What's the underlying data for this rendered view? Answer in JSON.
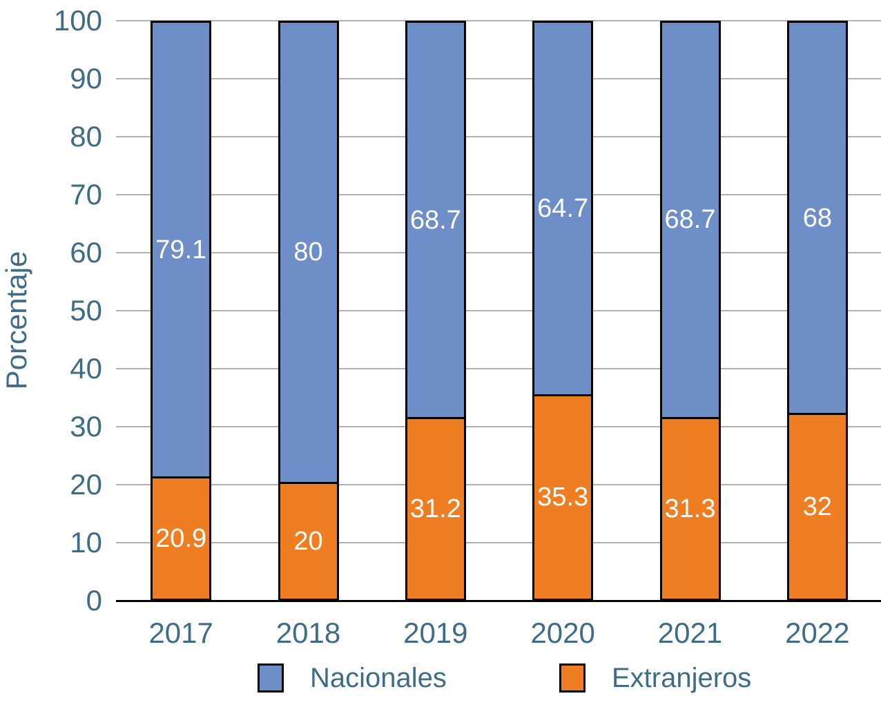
{
  "chart_data": {
    "type": "bar",
    "stacked": true,
    "orientation": "vertical",
    "categories": [
      "2017",
      "2018",
      "2019",
      "2020",
      "2021",
      "2022"
    ],
    "series": [
      {
        "name": "Nacionales",
        "color": "#6E8EC8",
        "values": [
          79.1,
          80,
          68.7,
          64.7,
          68.7,
          68
        ],
        "labels": [
          "79.1",
          "80",
          "68.7",
          "64.7",
          "68.7",
          "68"
        ]
      },
      {
        "name": "Extranjeros",
        "color": "#EF7D22",
        "values": [
          20.9,
          20,
          31.2,
          35.3,
          31.3,
          32
        ],
        "labels": [
          "20.9",
          "20",
          "31.2",
          "35.3",
          "31.3",
          "32"
        ]
      }
    ],
    "title": "",
    "xlabel": "",
    "ylabel": "Porcentaje",
    "ylim": [
      0,
      100
    ],
    "yticks": [
      0,
      10,
      20,
      30,
      40,
      50,
      60,
      70,
      80,
      90,
      100
    ],
    "grid": true,
    "legend_position": "bottom",
    "data_label_color": "#ffffff",
    "axis_text_color": "#3e6c87",
    "gridline_color": "#b0b0b0",
    "bar_border_color": "#000000"
  }
}
